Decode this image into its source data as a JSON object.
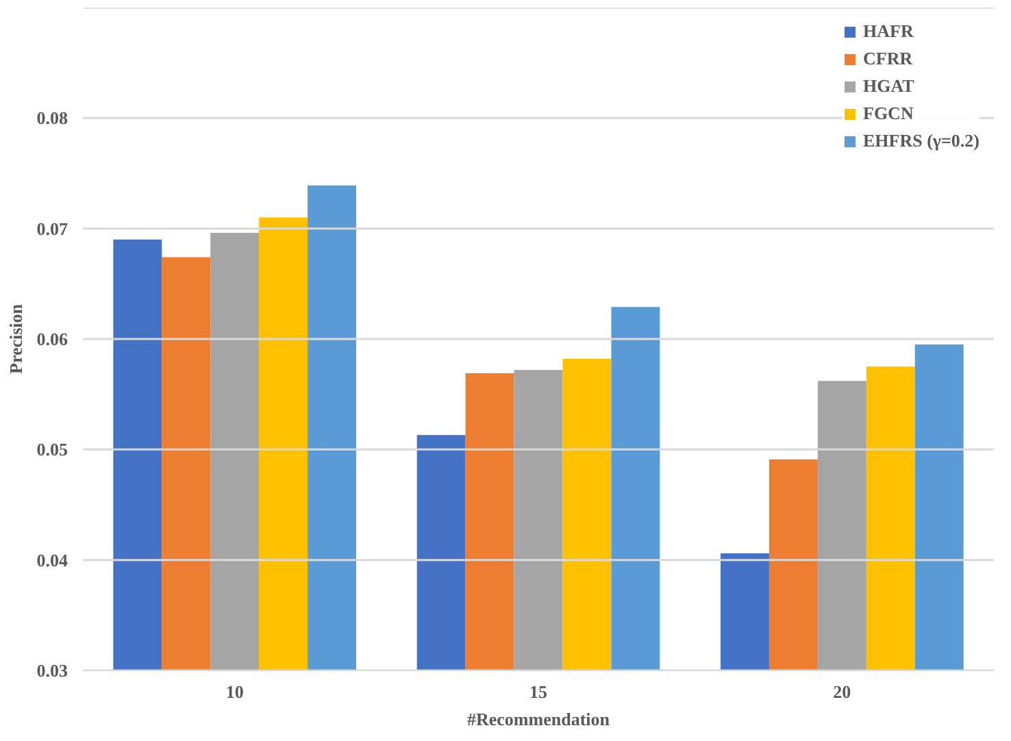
{
  "chart_data": {
    "type": "bar",
    "xlabel": "#Recommendation",
    "ylabel": "Precision",
    "categories": [
      "10",
      "15",
      "20"
    ],
    "series": [
      {
        "name": "HAFR",
        "color": "#4472c4",
        "values": [
          0.069,
          0.0513,
          0.0406
        ]
      },
      {
        "name": "CFRR",
        "color": "#ed7d31",
        "values": [
          0.0674,
          0.0569,
          0.0491
        ]
      },
      {
        "name": "HGAT",
        "color": "#a5a5a5",
        "values": [
          0.0696,
          0.0572,
          0.0562
        ]
      },
      {
        "name": "FGCN",
        "color": "#ffc000",
        "values": [
          0.071,
          0.0582,
          0.0575
        ]
      },
      {
        "name": "EHFRS (γ=0.2)",
        "color": "#5b9bd5",
        "values": [
          0.0739,
          0.0629,
          0.0595
        ]
      }
    ],
    "ylim": [
      0.03,
      0.09
    ],
    "yticks": [
      0.03,
      0.04,
      0.05,
      0.06,
      0.07,
      0.08,
      {
        "value": 0.09,
        "label": null
      }
    ],
    "grid": "y",
    "legend": "top right"
  }
}
